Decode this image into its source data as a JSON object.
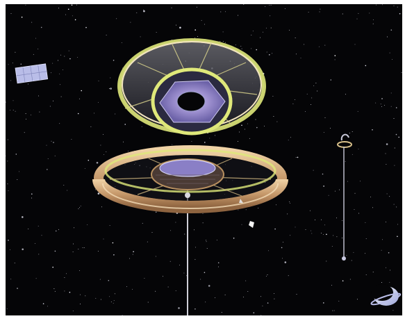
{
  "image": {
    "kind": "space-illustration",
    "subjects": [
      "upper-habitat-ring",
      "lower-habitat-ring",
      "solar-panel-satellite",
      "distant-tether-station",
      "small-spacecraft",
      "crescent-planet"
    ]
  },
  "colors": {
    "space_background": "#050507",
    "frame": "#ffffff",
    "ring_tan": "#cdb08a",
    "ring_glow": "#dfe87a",
    "hub_purple": "#8a7fc6",
    "tether": "#cfcfd8",
    "panel_blue": "#b9bde8"
  }
}
